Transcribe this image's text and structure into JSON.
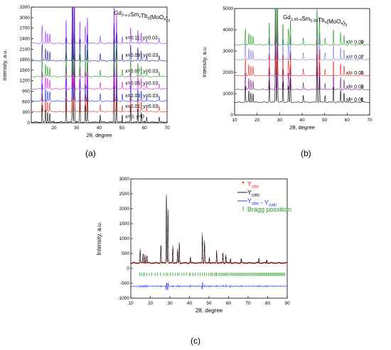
{
  "panels": [
    {
      "label": "(a)",
      "title_parts": [
        [
          "Gd",
          ""
        ],
        [
          "2-x-y",
          "sub"
        ],
        [
          "Sm",
          ""
        ],
        [
          "x",
          "sub"
        ],
        [
          "Tb",
          ""
        ],
        [
          "y",
          "sub"
        ],
        [
          "(MoO",
          ""
        ],
        [
          "4",
          "sub"
        ],
        [
          ")",
          ""
        ],
        [
          "3",
          "sub"
        ]
      ],
      "xlabel": "2θ, degree",
      "ylabel": "Intensity, a.u.",
      "xlim": [
        10,
        70
      ],
      "ylim": [
        0,
        3300
      ],
      "xticks": [
        20,
        30,
        40,
        50,
        60,
        70
      ],
      "yticks": [
        0,
        300,
        600,
        900,
        1200,
        1500,
        1800,
        2100,
        2400,
        2700,
        3000,
        3300
      ],
      "series": [
        {
          "name": "x=0; y=0",
          "color": "#000000",
          "offset": 0
        },
        {
          "name": "x=0.01; y=0.03",
          "color": "#e8281e",
          "offset": 300
        },
        {
          "name": "x=0.03; y=0.03",
          "color": "#1a2aff",
          "offset": 600
        },
        {
          "name": "x=0.05; y=0.03",
          "color": "#e020e0",
          "offset": 950
        },
        {
          "name": "x=0.07; y=0.03",
          "color": "#1f9a1f",
          "offset": 1300
        },
        {
          "name": "x=0.09; y=0.03",
          "color": "#1a1aa0",
          "offset": 1750
        },
        {
          "name": "x=0.11; y=0.03",
          "color": "#9a30ff",
          "offset": 2250
        }
      ]
    },
    {
      "label": "(b)",
      "title_parts": [
        [
          "Gd",
          ""
        ],
        [
          "1.95-x",
          "sub"
        ],
        [
          "Sm",
          ""
        ],
        [
          "0.05",
          "sub"
        ],
        [
          "Tb",
          ""
        ],
        [
          "x",
          "sub"
        ],
        [
          "(MoO",
          ""
        ],
        [
          "4",
          "sub"
        ],
        [
          ")",
          ""
        ],
        [
          "3",
          "sub"
        ]
      ],
      "xlabel": "2θ, degree",
      "ylabel": "Intensity, a.u.",
      "xlim": [
        10,
        70
      ],
      "ylim": [
        0,
        5000
      ],
      "xticks": [
        10,
        20,
        30,
        40,
        50,
        60,
        70
      ],
      "yticks": [
        0,
        1000,
        2000,
        3000,
        4000,
        5000
      ],
      "series": [
        {
          "name": "x = 0.01",
          "color": "#000000",
          "offset": 350
        },
        {
          "name": "x = 0.03",
          "color": "#7a1a8a",
          "offset": 950
        },
        {
          "name": "x = 0.05",
          "color": "#e8281e",
          "offset": 1600
        },
        {
          "name": "x = 0.07",
          "color": "#7a7adc",
          "offset": 2350
        },
        {
          "name": "x = 0.09",
          "color": "#1f9a1f",
          "offset": 3050
        }
      ]
    },
    {
      "label": "(c)",
      "xlabel": "2θ, degree",
      "ylabel": "Intensity, a.u.",
      "xlim": [
        10,
        90
      ],
      "ylim": [
        -1000,
        3000
      ],
      "xticks": [
        10,
        20,
        30,
        40,
        50,
        60,
        70,
        80,
        90
      ],
      "yticks": [
        -1000,
        -500,
        0,
        500,
        1000,
        1500,
        2000,
        2500,
        3000
      ],
      "legend": [
        {
          "key": "obs",
          "parts": [
            [
              "Y",
              ""
            ],
            [
              "obs",
              "sub"
            ]
          ],
          "color": "#e8281e"
        },
        {
          "key": "calc",
          "parts": [
            [
              "Y",
              ""
            ],
            [
              "calc",
              "sub"
            ]
          ],
          "color": "#000000"
        },
        {
          "key": "diff",
          "parts": [
            [
              "Y",
              ""
            ],
            [
              "obs",
              "sub"
            ],
            [
              " - Y",
              ""
            ],
            [
              "calc",
              "sub"
            ]
          ],
          "color": "#1a2aff"
        },
        {
          "key": "bragg",
          "parts": [
            [
              "Bragg possition",
              ""
            ]
          ],
          "color": "#1f9a1f"
        }
      ]
    }
  ],
  "chart_data": {
    "type": "line",
    "peaks": [
      {
        "x": 14.8,
        "h": 0.17
      },
      {
        "x": 16.3,
        "h": 0.12
      },
      {
        "x": 17.2,
        "h": 0.1
      },
      {
        "x": 18.2,
        "h": 0.09
      },
      {
        "x": 25.4,
        "h": 0.23
      },
      {
        "x": 28.2,
        "h": 0.9
      },
      {
        "x": 29.0,
        "h": 0.7
      },
      {
        "x": 31.5,
        "h": 0.22
      },
      {
        "x": 33.9,
        "h": 0.17
      },
      {
        "x": 34.8,
        "h": 0.26
      },
      {
        "x": 40.5,
        "h": 0.07
      },
      {
        "x": 46.6,
        "h": 0.38
      },
      {
        "x": 47.7,
        "h": 0.28
      },
      {
        "x": 50.2,
        "h": 0.07
      },
      {
        "x": 53.9,
        "h": 0.16
      },
      {
        "x": 57.1,
        "h": 0.13
      },
      {
        "x": 58.6,
        "h": 0.1
      },
      {
        "x": 61.0,
        "h": 0.05
      },
      {
        "x": 66.5,
        "h": 0.05
      },
      {
        "x": 75.5,
        "h": 0.06
      },
      {
        "x": 79.5,
        "h": 0.04
      }
    ],
    "peak_scale": [
      2900,
      4500,
      2550
    ],
    "baseline": [
      20,
      250,
      180
    ],
    "diff_level": -600,
    "bragg_level": -200,
    "bragg_positions": [
      14.6,
      15.4,
      16.3,
      17.1,
      18.2,
      19.5,
      20.7,
      22.4,
      23.6,
      25.2,
      26.8,
      28.1,
      28.9,
      30.2,
      31.5,
      32.8,
      33.9,
      34.7,
      36.1,
      37.2,
      38.6,
      39.9,
      40.5,
      41.8,
      42.9,
      44.3,
      45.5,
      46.6,
      47.7,
      48.6,
      49.9,
      50.9,
      51.7,
      52.6,
      53.4,
      53.9,
      54.8,
      55.6,
      56.3,
      57.1,
      57.8,
      58.6,
      59.3,
      60.1,
      60.9,
      61.6,
      62.3,
      63.0,
      63.7,
      64.4,
      65.1,
      65.8,
      66.5,
      67.2,
      67.9,
      68.6,
      69.3,
      70.0,
      70.7,
      71.4,
      72.1,
      72.8,
      73.5,
      74.2,
      74.9,
      75.5,
      76.1,
      76.7,
      77.3,
      77.9,
      78.5,
      79.1,
      79.7,
      80.3,
      80.9,
      81.5,
      82.1,
      82.7,
      83.3,
      83.9,
      84.5,
      85.1,
      85.7,
      86.3,
      86.9,
      87.5,
      88.1,
      88.7
    ]
  }
}
